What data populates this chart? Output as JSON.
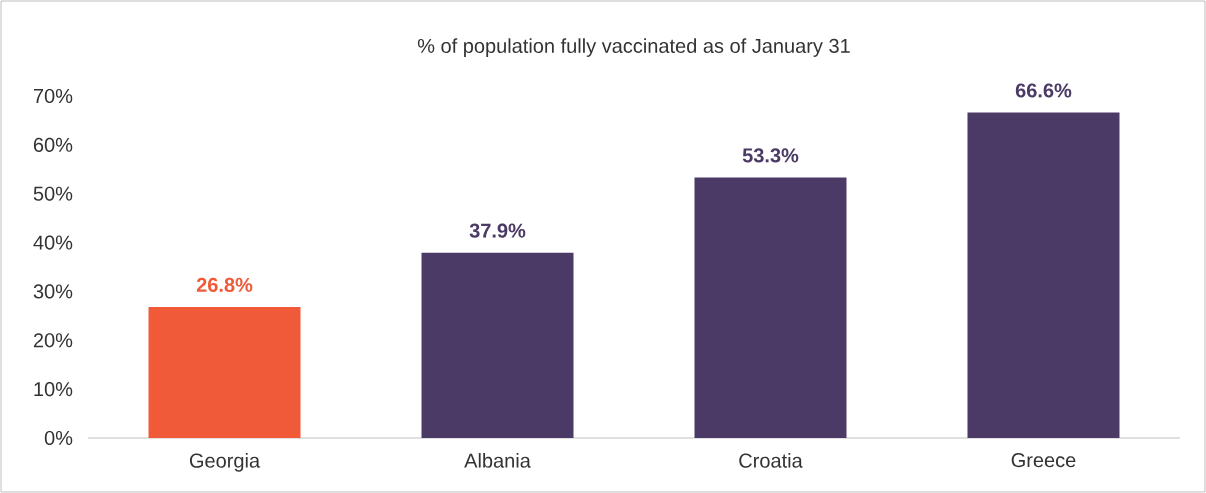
{
  "chart_data": {
    "type": "bar",
    "title": "% of population fully vaccinated as of January 31",
    "categories": [
      "Georgia",
      "Albania",
      "Croatia",
      "Greece"
    ],
    "values": [
      26.8,
      37.9,
      53.3,
      66.6
    ],
    "colors": [
      "#f05a38",
      "#4b3a66",
      "#4b3a66",
      "#4b3a66"
    ],
    "value_labels": [
      "26.8%",
      "37.9%",
      "53.3%",
      "66.6%"
    ],
    "ylim": [
      0,
      70
    ],
    "yticks": [
      {
        "value": 0,
        "label": "0%"
      },
      {
        "value": 10,
        "label": "10%"
      },
      {
        "value": 20,
        "label": "20%"
      },
      {
        "value": 30,
        "label": "30%"
      },
      {
        "value": 40,
        "label": "40%"
      },
      {
        "value": 50,
        "label": "50%"
      },
      {
        "value": 60,
        "label": "60%"
      },
      {
        "value": 70,
        "label": "70%"
      }
    ]
  }
}
